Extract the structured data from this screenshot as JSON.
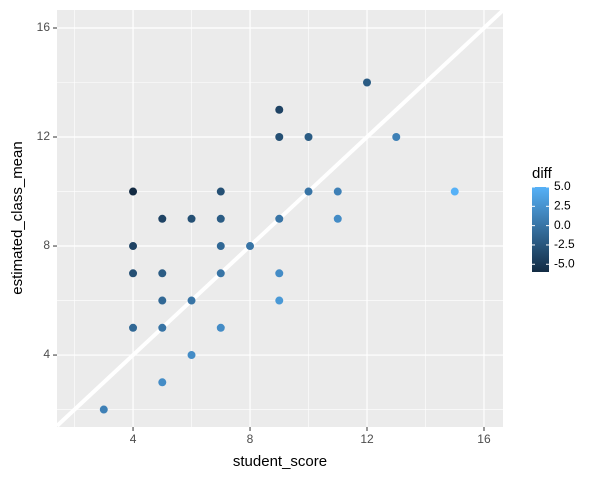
{
  "chart_data": {
    "type": "scatter",
    "x_label": "student_score",
    "y_label": "estimated_class_mean",
    "x": [
      3,
      4,
      4,
      4,
      4,
      5,
      5,
      5,
      5,
      5,
      6,
      6,
      6,
      7,
      7,
      7,
      7,
      7,
      8,
      9,
      9,
      9,
      9,
      9,
      10,
      10,
      11,
      11,
      12,
      13,
      15
    ],
    "y": [
      2,
      10,
      8,
      7,
      5,
      9,
      7,
      6,
      5,
      3,
      9,
      6,
      4,
      10,
      9,
      8,
      7,
      5,
      8,
      13,
      12,
      9,
      7,
      6,
      12,
      10,
      10,
      9,
      14,
      12,
      10
    ],
    "color_values": [
      1,
      -6,
      -4,
      -3,
      -1,
      -4,
      -2,
      -1,
      0,
      2,
      -3,
      0,
      2,
      -3,
      -2,
      -1,
      0,
      2,
      0,
      -4,
      -3,
      0,
      2,
      3,
      -2,
      0,
      1,
      2,
      -2,
      1,
      5
    ],
    "xlim": [
      1.4,
      16.65
    ],
    "ylim": [
      1.36,
      16.66
    ],
    "xticks": [
      4,
      8,
      12,
      16
    ],
    "yticks": [
      4,
      8,
      12,
      16
    ],
    "xminor": [
      2,
      6,
      10,
      14
    ],
    "yminor": [
      2,
      6,
      10,
      14
    ],
    "reference_line": {
      "slope": 1,
      "intercept": 0
    },
    "legend": {
      "title": "diff",
      "colorlim": [
        -6,
        5
      ],
      "low_color": "#132B43",
      "high_color": "#56B1F7",
      "ticks": [
        {
          "value": 5,
          "label": "5.0"
        },
        2.5,
        {
          "value": 0,
          "label": "0.0"
        },
        -2.5,
        {
          "value": -5,
          "label": "-5.0"
        }
      ]
    },
    "grid": true
  }
}
